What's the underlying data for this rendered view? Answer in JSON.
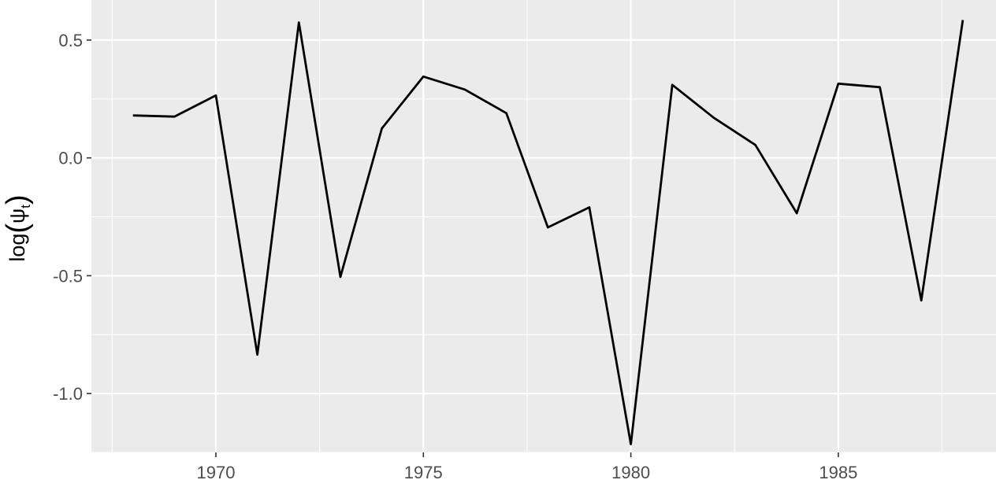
{
  "chart_data": {
    "type": "line",
    "title": "",
    "xlabel": "",
    "ylabel": "log(ψt)",
    "ylabel_parts": {
      "func": "log",
      "symbol": "ψ",
      "subscript": "t"
    },
    "xlim": [
      1967,
      1988.8
    ],
    "ylim": [
      -1.25,
      0.67
    ],
    "x_ticks": [
      1970,
      1975,
      1980,
      1985
    ],
    "x_tick_labels": [
      "1970",
      "1975",
      "1980",
      "1985"
    ],
    "y_ticks": [
      -1.0,
      -0.5,
      0.0,
      0.5
    ],
    "y_tick_labels": [
      "-1.0",
      "-0.5",
      "0.0",
      "0.5"
    ],
    "grid": true,
    "legend": "none",
    "colors": {
      "panel": "#ebebeb",
      "grid_major": "#ffffff",
      "line": "#000000",
      "tick_text": "#4d4d4d"
    },
    "series": [
      {
        "x": [
          1968,
          1969,
          1970,
          1971,
          1972,
          1973,
          1974,
          1975,
          1976,
          1977,
          1978,
          1979,
          1980,
          1981,
          1982,
          1983,
          1984,
          1985,
          1986,
          1987,
          1988
        ],
        "y": [
          0.18,
          0.175,
          0.265,
          -0.835,
          0.575,
          -0.505,
          0.125,
          0.345,
          0.29,
          0.19,
          -0.295,
          -0.21,
          -1.215,
          0.31,
          0.17,
          0.055,
          -0.235,
          0.315,
          0.3,
          -0.605,
          0.585
        ]
      }
    ]
  }
}
